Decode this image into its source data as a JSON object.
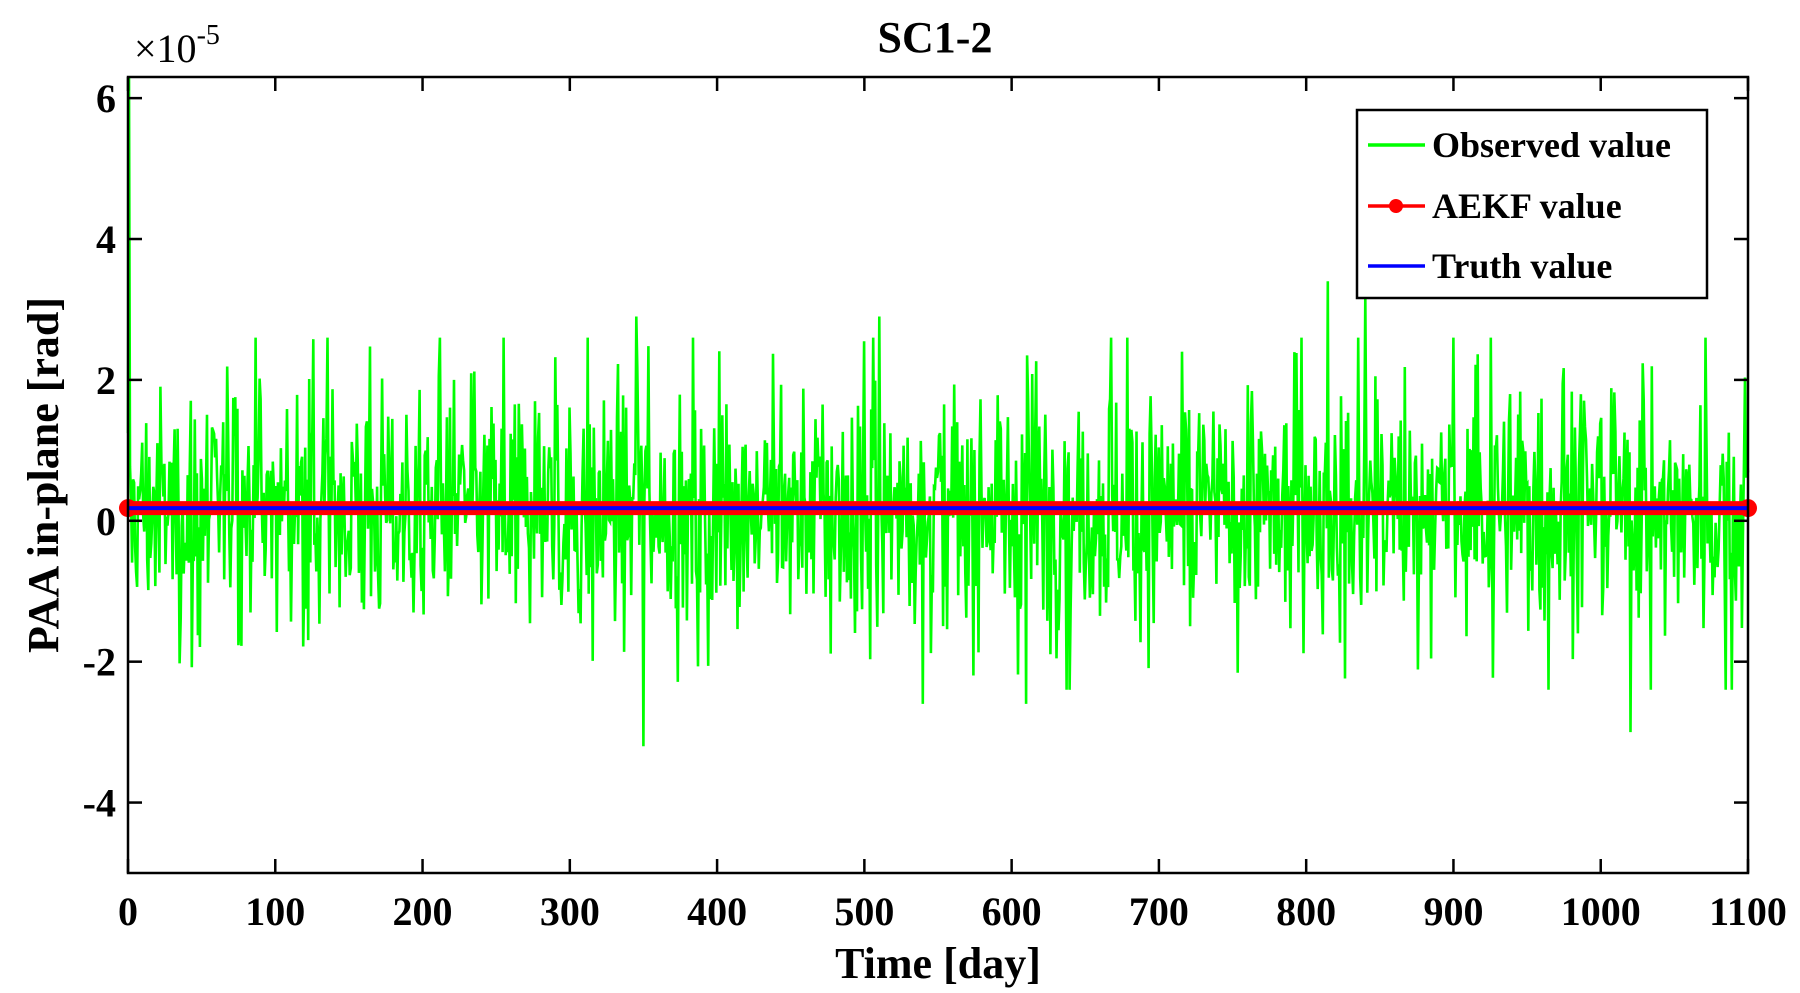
{
  "chart_data": {
    "type": "line",
    "title": "SC1-2",
    "xlabel": "Time [day]",
    "ylabel": "PAA in-plane [rad]",
    "y_exponent": "-5",
    "y_exponent_prefix": "×10",
    "xlim": [
      0,
      1100
    ],
    "ylim": [
      -5,
      6.3
    ],
    "x_ticks": [
      0,
      100,
      200,
      300,
      400,
      500,
      600,
      700,
      800,
      900,
      1000,
      1100
    ],
    "x_tick_labels": [
      "0",
      "100",
      "200",
      "300",
      "400",
      "500",
      "600",
      "700",
      "800",
      "900",
      "1000",
      "1100"
    ],
    "y_ticks": [
      -4,
      -2,
      0,
      2,
      4,
      6
    ],
    "y_tick_labels": [
      "-4",
      "-2",
      "0",
      "2",
      "4",
      "6"
    ],
    "grid": false,
    "legend_position": "top-right",
    "series": [
      {
        "name": "Observed value",
        "color": "#00ff00",
        "kind": "noise",
        "x_range": [
          0,
          1100
        ],
        "mean": 0.18,
        "spread": 0.8,
        "min": -3.2,
        "max": 6.3,
        "peaks": [
          {
            "x": 1,
            "y": 6.3
          },
          {
            "x": 350,
            "y": -3.2
          },
          {
            "x": 815,
            "y": 3.4
          },
          {
            "x": 840,
            "y": 3.2
          },
          {
            "x": 1020,
            "y": -3.0
          },
          {
            "x": 345,
            "y": 2.9
          },
          {
            "x": 510,
            "y": 2.9
          },
          {
            "x": 610,
            "y": -2.6
          },
          {
            "x": 540,
            "y": -2.6
          }
        ]
      },
      {
        "name": "AEKF value",
        "color": "#ff0000",
        "marker": "circle",
        "x": [
          0,
          1100
        ],
        "y": [
          0.18,
          0.18
        ]
      },
      {
        "name": "Truth value",
        "color": "#0000ff",
        "x": [
          0,
          1100
        ],
        "y": [
          0.18,
          0.18
        ]
      }
    ]
  }
}
